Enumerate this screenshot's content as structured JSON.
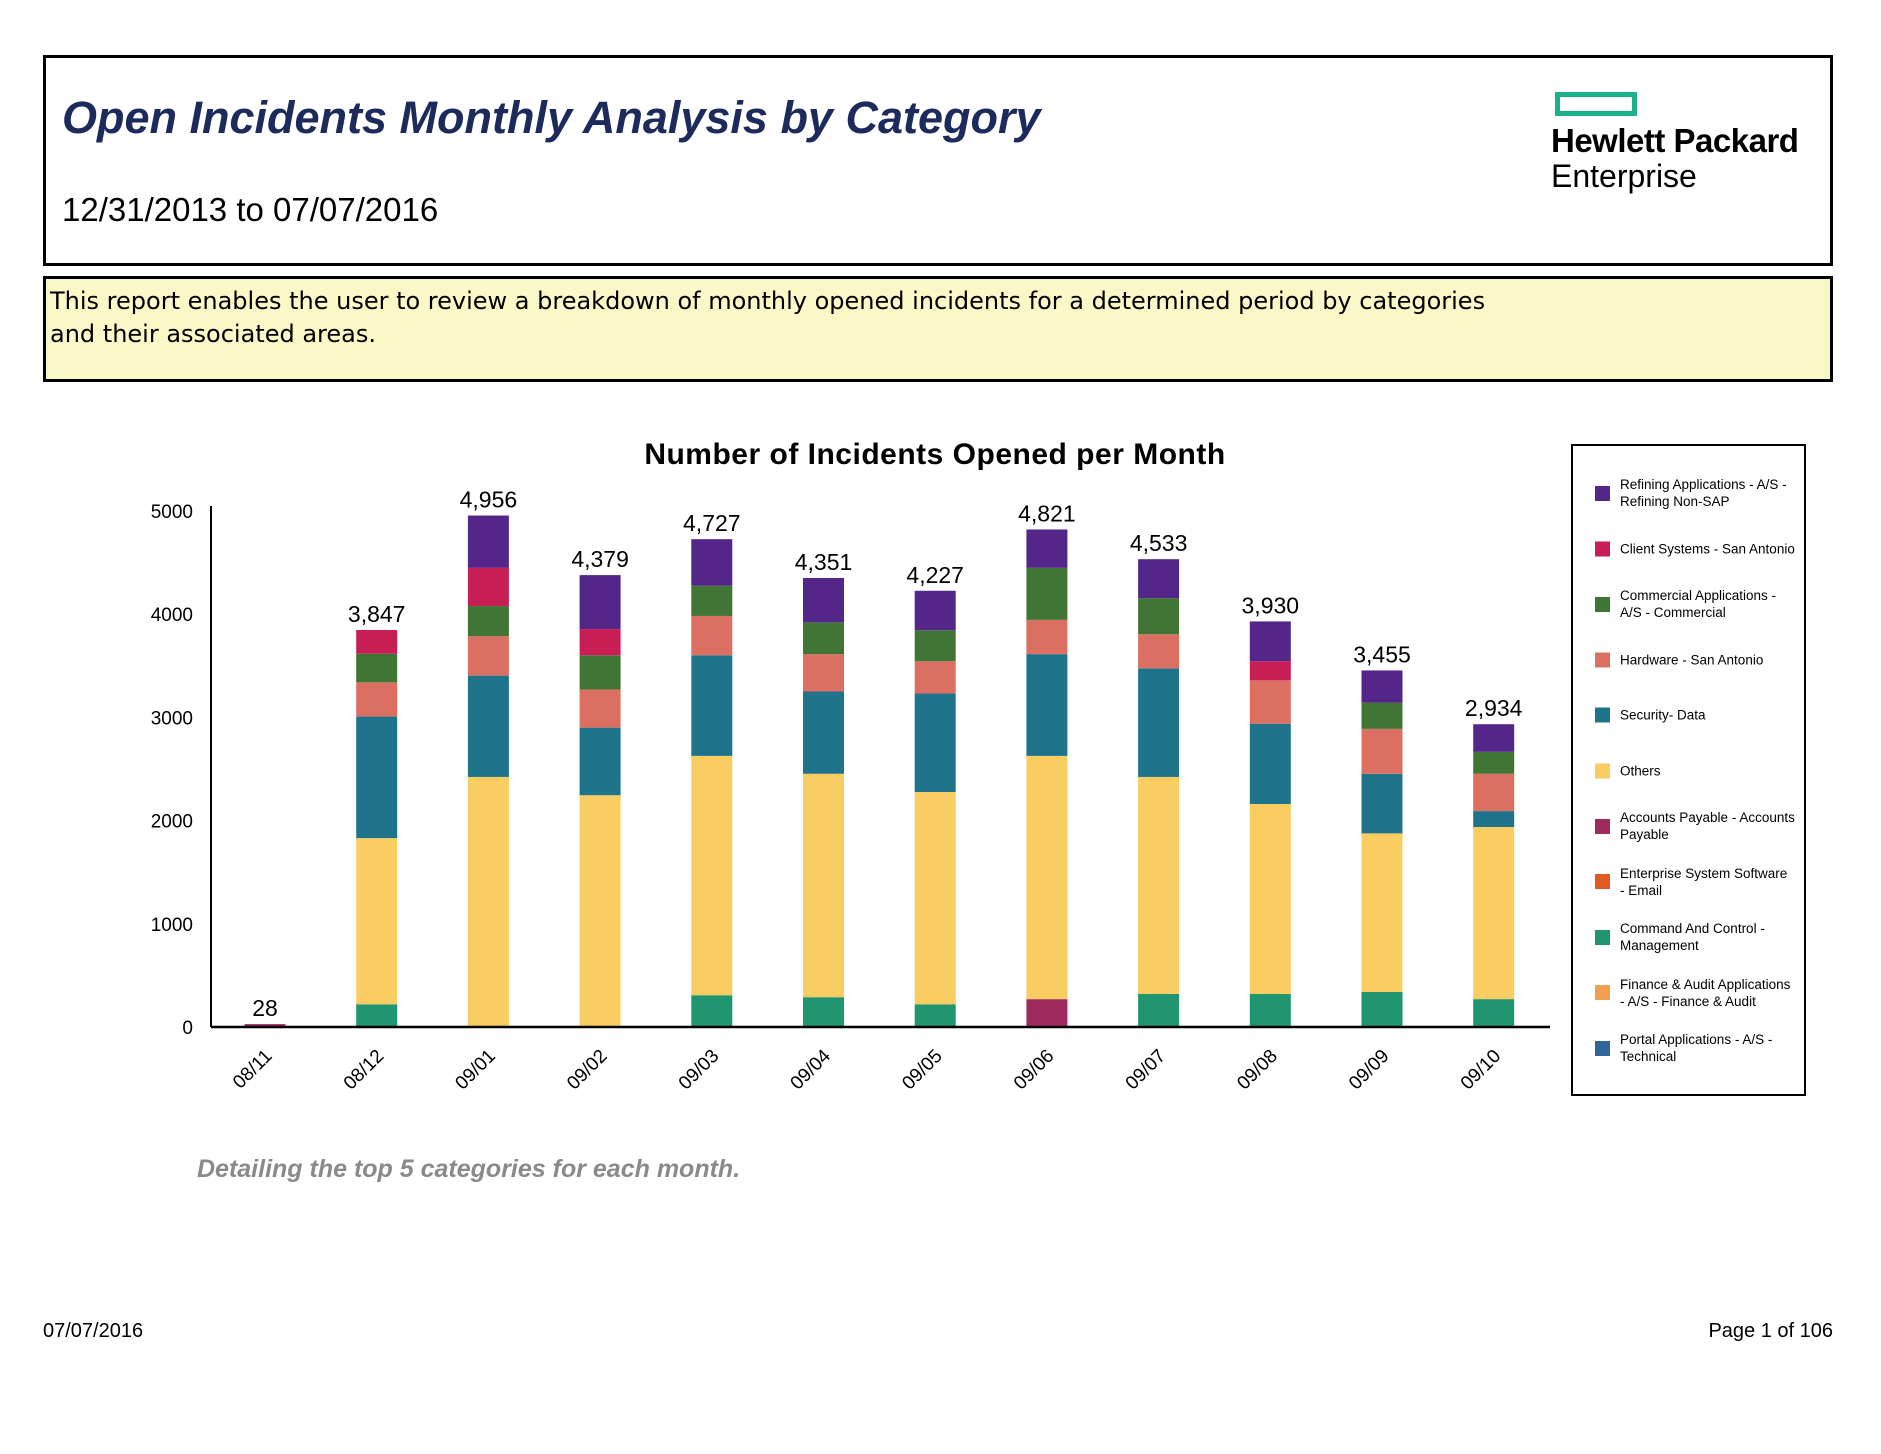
{
  "header": {
    "title": "Open Incidents Monthly Analysis by Category",
    "date_range": "12/31/2013 to 07/07/2016",
    "logo_line1": "Hewlett Packard",
    "logo_line2": "Enterprise",
    "logo_color": "#1ab08a"
  },
  "description": "This report enables the user to review a breakdown of monthly opened incidents for a determined period by categories and their associated areas.",
  "chart_data": {
    "type": "bar",
    "stacked": true,
    "title": "Number of Incidents Opened per Month",
    "xlabel": "",
    "ylabel": "",
    "ylim": [
      0,
      5000
    ],
    "yticks": [
      0,
      1000,
      2000,
      3000,
      4000,
      5000
    ],
    "grid": false,
    "legend_position": "right",
    "categories": [
      "08/11",
      "08/12",
      "09/01",
      "09/02",
      "09/03",
      "09/04",
      "09/05",
      "09/06",
      "09/07",
      "09/08",
      "09/09",
      "09/10"
    ],
    "totals": [
      "28",
      "3,847",
      "4,956",
      "4,379",
      "4,727",
      "4,351",
      "4,227",
      "4,821",
      "4,533",
      "3,930",
      "3,455",
      "2,934"
    ],
    "series": [
      {
        "name": "Accounts Payable - Accounts Payable",
        "color": "#9e2a5e",
        "values": [
          28,
          0,
          0,
          0,
          0,
          0,
          0,
          270,
          0,
          0,
          0,
          0
        ]
      },
      {
        "name": "Command And Control - Management",
        "color": "#20956f",
        "values": [
          0,
          220,
          0,
          0,
          308,
          289,
          220,
          0,
          320,
          320,
          339,
          270
        ]
      },
      {
        "name": "Others",
        "color": "#facd62",
        "values": [
          0,
          1610,
          2423,
          2246,
          2319,
          2165,
          2057,
          2357,
          2103,
          1841,
          1537,
          1668
        ]
      },
      {
        "name": "Security- Data",
        "color": "#1f748c",
        "values": [
          0,
          1178,
          982,
          655,
          975,
          797,
          955,
          986,
          1052,
          778,
          578,
          154
        ]
      },
      {
        "name": "Hardware - San Antonio",
        "color": "#db7062",
        "values": [
          0,
          332,
          382,
          369,
          381,
          362,
          312,
          332,
          331,
          420,
          435,
          362
        ]
      },
      {
        "name": "Commercial Applications - A/S - Commercial",
        "color": "#417535",
        "values": [
          0,
          277,
          292,
          332,
          293,
          308,
          300,
          504,
          350,
          0,
          254,
          212
        ]
      },
      {
        "name": "Client Systems - San Antonio",
        "color": "#c81e56",
        "values": [
          0,
          230,
          370,
          254,
          0,
          0,
          0,
          0,
          0,
          185,
          0,
          0
        ]
      },
      {
        "name": "Refining Applications - A/S - Refining Non-SAP",
        "color": "#55268a",
        "values": [
          0,
          0,
          507,
          523,
          451,
          430,
          383,
          372,
          377,
          386,
          312,
          268
        ]
      },
      {
        "name": "Enterprise System Software - Email",
        "color": "#e05a22",
        "values": [
          0,
          0,
          0,
          0,
          0,
          0,
          0,
          0,
          0,
          0,
          0,
          0
        ]
      },
      {
        "name": "Finance & Audit Applications - A/S - Finance & Audit",
        "color": "#f0a050",
        "values": [
          0,
          0,
          0,
          0,
          0,
          0,
          0,
          0,
          0,
          0,
          0,
          0
        ]
      },
      {
        "name": "Portal Applications - A/S - Technical",
        "color": "#32669a",
        "values": [
          0,
          0,
          0,
          0,
          0,
          0,
          0,
          0,
          0,
          0,
          0,
          0
        ]
      }
    ],
    "legend_order": [
      "Refining Applications - A/S - Refining Non-SAP",
      "Client Systems - San Antonio",
      "Commercial Applications - A/S - Commercial",
      "Hardware - San Antonio",
      "Security- Data",
      "Others",
      "Accounts Payable - Accounts Payable",
      "Enterprise System Software - Email",
      "Command And Control - Management",
      "Finance & Audit Applications - A/S - Finance & Audit",
      "Portal Applications - A/S - Technical"
    ]
  },
  "footnote": "Detailing the top 5 categories for each month.",
  "footer": {
    "date": "07/07/2016",
    "page": "Page 1 of 106"
  }
}
